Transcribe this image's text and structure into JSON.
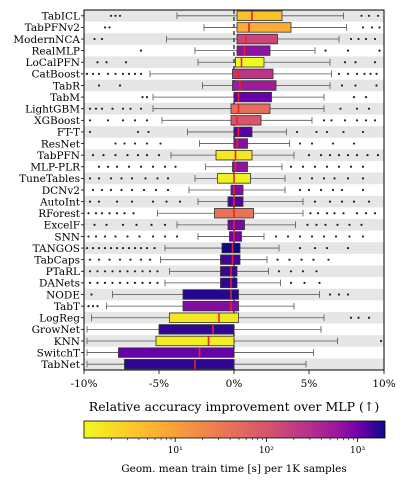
{
  "chart_data": {
    "type": "boxplot",
    "orientation": "horizontal",
    "xlabel": "Relative accuracy improvement over MLP (↑)",
    "xlim": [
      -10,
      10
    ],
    "xticks": [
      -10,
      -5,
      0,
      5,
      10
    ],
    "xtick_labels": [
      "-10%",
      "-5%",
      "0%",
      "5%",
      "10%"
    ],
    "zero_line": 0,
    "row_shading": "alternating light gray",
    "colorbar": {
      "label": "Geom. mean train time [s] per 1K samples",
      "scale": "log",
      "range": [
        1,
        2000
      ],
      "ticks": [
        10,
        100,
        1000
      ],
      "tick_labels": [
        "10¹",
        "10²",
        "10³"
      ],
      "colormap": "plasma_r"
    },
    "median_marker_color": "#e8231f",
    "series": [
      {
        "name": "TabICL",
        "q1": 0.2,
        "median": 1.2,
        "q3": 3.2,
        "whisker_low": -3.8,
        "whisker_high": 7.3,
        "time": 4,
        "outliers": [
          -8.2,
          -7.9,
          -7.6,
          8.5,
          9.0,
          9.6
        ]
      },
      {
        "name": "TabPFNv2",
        "q1": 0.2,
        "median": 1.0,
        "q3": 3.8,
        "whisker_low": -2.0,
        "whisker_high": 7.5,
        "time": 7,
        "outliers": [
          -8.6,
          -8.3,
          8.6,
          9.2,
          9.7
        ]
      },
      {
        "name": "ModernNCA",
        "q1": 0.2,
        "median": 0.8,
        "q3": 2.9,
        "whisker_low": -4.5,
        "whisker_high": 7.0,
        "time": 160,
        "outliers": [
          -9.3,
          -8.8,
          7.8,
          8.3,
          8.8,
          9.4
        ]
      },
      {
        "name": "RealMLP",
        "q1": 0.2,
        "median": 0.7,
        "q3": 2.4,
        "whisker_low": -2.6,
        "whisker_high": 5.4,
        "time": 700,
        "outliers": [
          -6.2,
          6.1,
          7.6,
          9.7
        ]
      },
      {
        "name": "LoCalPFN",
        "q1": 0.1,
        "median": 0.5,
        "q3": 2.0,
        "whisker_low": -2.4,
        "whisker_high": 6.4,
        "time": 1,
        "outliers": [
          -9.1,
          -8.5,
          -7.2,
          7.4,
          8.1,
          9.4
        ]
      },
      {
        "name": "CatBoost",
        "q1": -0.1,
        "median": 0.3,
        "q3": 2.6,
        "whisker_low": -5.6,
        "whisker_high": 6.5,
        "time": 260,
        "outliers": [
          -9.8,
          -9.4,
          -9.0,
          -8.4,
          -7.9,
          -7.4,
          -7.0,
          -6.6,
          -6.2,
          7.0,
          7.6,
          8.2,
          8.7,
          9.1,
          9.5
        ]
      },
      {
        "name": "TabR",
        "q1": -0.1,
        "median": 0.4,
        "q3": 2.8,
        "whisker_low": -2.1,
        "whisker_high": 6.4,
        "time": 550,
        "outliers": [
          -9.0,
          -7.6,
          7.2,
          8.1,
          9.5
        ]
      },
      {
        "name": "TabM",
        "q1": 0.0,
        "median": 0.3,
        "q3": 2.5,
        "whisker_low": -5.4,
        "whisker_high": 6.0,
        "time": 1100,
        "outliers": [
          -6.1,
          -5.8,
          8.0,
          8.8
        ]
      },
      {
        "name": "LightGBM",
        "q1": -0.2,
        "median": 0.3,
        "q3": 2.4,
        "whisker_low": -5.4,
        "whisker_high": 6.0,
        "time": 45,
        "outliers": [
          -9.6,
          -9.2,
          -8.8,
          -8.1,
          -7.4,
          -6.9,
          -6.2,
          7.1,
          8.2,
          9.0
        ]
      },
      {
        "name": "XGBoost",
        "q1": -0.2,
        "median": 0.2,
        "q3": 1.8,
        "whisker_low": -4.8,
        "whisker_high": 5.2,
        "time": 100,
        "outliers": [
          -9.6,
          -8.4,
          -7.4,
          -6.6,
          -5.8,
          6.0,
          6.5,
          7.4,
          8.2,
          8.8,
          9.4
        ]
      },
      {
        "name": "FT-T",
        "q1": 0.0,
        "median": 0.3,
        "q3": 1.2,
        "whisker_low": -3.1,
        "whisker_high": 3.5,
        "time": 1200,
        "outliers": [
          -9.6,
          -6.4,
          -5.7,
          4.2,
          5.5,
          6.2,
          7.3,
          8.6
        ]
      },
      {
        "name": "ResNet",
        "q1": 0.0,
        "median": 0.2,
        "q3": 0.9,
        "whisker_low": -2.3,
        "whisker_high": 3.7,
        "time": 750,
        "outliers": [
          -7.9,
          -7.3,
          -6.6,
          -5.8,
          -4.9,
          4.4,
          5.2,
          6.6,
          8.0
        ]
      },
      {
        "name": "TabPFN",
        "q1": -1.2,
        "median": 0.1,
        "q3": 1.2,
        "whisker_low": -4.2,
        "whisker_high": 4.0,
        "time": 1.5,
        "outliers": [
          -9.4,
          -8.7,
          -7.9,
          -7.1,
          -6.4,
          -5.8,
          -5.0,
          5.0,
          5.8,
          6.4,
          7.0,
          7.6,
          8.2,
          8.9,
          9.6
        ]
      },
      {
        "name": "MLP-PLR",
        "q1": -0.1,
        "median": 0.1,
        "q3": 0.9,
        "whisker_low": -1.9,
        "whisker_high": 3.2,
        "time": 700,
        "outliers": [
          -9.0,
          -8.4,
          -7.8,
          -7.0,
          -6.2,
          -5.4,
          -4.6,
          -3.9,
          3.8,
          4.6,
          5.4,
          6.2,
          7.0,
          7.8,
          8.6
        ]
      },
      {
        "name": "TuneTables",
        "q1": -1.1,
        "median": 0.0,
        "q3": 1.1,
        "whisker_low": -2.6,
        "whisker_high": 3.4,
        "time": 1.2,
        "outliers": [
          -9.6,
          -9.0,
          -8.2,
          -7.5,
          -6.8,
          -5.9,
          -5.1,
          -4.4,
          4.4,
          5.2,
          6.0,
          6.7,
          7.6,
          8.6
        ]
      },
      {
        "name": "DCNv2",
        "q1": -0.2,
        "median": 0.0,
        "q3": 0.6,
        "whisker_low": -3.0,
        "whisker_high": 3.4,
        "time": 800,
        "outliers": [
          -9.4,
          -8.8,
          -8.2,
          -7.5,
          -6.8,
          -6.0,
          -5.2,
          -4.4,
          4.4,
          5.0,
          5.8,
          6.6,
          7.2,
          8.6
        ]
      },
      {
        "name": "AutoInt",
        "q1": -0.4,
        "median": 0.0,
        "q3": 0.6,
        "whisker_low": -2.4,
        "whisker_high": 4.6,
        "time": 1300,
        "outliers": [
          -9.6,
          -9.0,
          -7.8,
          -6.8,
          -5.4,
          -4.5,
          -3.6,
          5.4,
          6.4,
          7.2,
          8.0,
          9.0
        ]
      },
      {
        "name": "RForest",
        "q1": -1.3,
        "median": 0.0,
        "q3": 1.3,
        "whisker_low": -5.1,
        "whisker_high": 4.6,
        "time": 38,
        "outliers": [
          -9.7,
          -9.2,
          -8.8,
          -8.3,
          -7.8,
          -7.3,
          -6.7,
          5.1,
          5.6,
          6.2,
          6.7,
          7.3,
          8.2,
          8.8,
          9.4
        ]
      },
      {
        "name": "ExcelF",
        "q1": -0.4,
        "median": 0.0,
        "q3": 0.7,
        "whisker_low": -3.8,
        "whisker_high": 4.1,
        "time": 900,
        "outliers": [
          -9.3,
          -8.5,
          -7.4,
          -6.5,
          -5.5,
          -4.6,
          4.9,
          5.5,
          6.1,
          6.9,
          7.7,
          8.5
        ]
      },
      {
        "name": "SNN",
        "q1": -0.3,
        "median": 0.0,
        "q3": 0.5,
        "whisker_low": -2.4,
        "whisker_high": 2.0,
        "time": 1000,
        "outliers": [
          -9.7,
          -9.2,
          -8.6,
          -7.9,
          -7.1,
          -6.3,
          -5.4,
          -4.6,
          -3.8,
          2.8,
          3.6,
          4.4,
          5.2,
          6.0,
          6.8,
          7.7,
          8.6
        ]
      },
      {
        "name": "TANGOS",
        "q1": -0.8,
        "median": -0.1,
        "q3": 0.4,
        "whisker_low": -4.6,
        "whisker_high": 3.0,
        "time": 2000,
        "outliers": [
          -9.8,
          -9.4,
          -9.0,
          -8.6,
          -8.2,
          -7.8,
          -7.4,
          -7.0,
          -6.6,
          -6.2,
          -5.8,
          -5.3,
          4.4,
          5.4,
          6.2,
          7.6
        ]
      },
      {
        "name": "TabCaps",
        "q1": -0.9,
        "median": -0.1,
        "q3": 0.4,
        "whisker_low": -4.9,
        "whisker_high": 2.2,
        "time": 1400,
        "outliers": [
          -9.6,
          -9.0,
          -8.3,
          -7.6,
          -6.9,
          -6.2,
          -5.6,
          2.9,
          3.7,
          4.5,
          5.3,
          6.3
        ]
      },
      {
        "name": "PTaRL",
        "q1": -0.9,
        "median": -0.2,
        "q3": 0.2,
        "whisker_low": -4.3,
        "whisker_high": 2.3,
        "time": 1500,
        "outliers": [
          -9.6,
          -9.1,
          -8.6,
          -8.1,
          -7.6,
          -7.1,
          -6.6,
          -6.1,
          -5.6,
          -5.1,
          3.0,
          3.8,
          4.6,
          5.5
        ]
      },
      {
        "name": "DANets",
        "q1": -0.9,
        "median": -0.2,
        "q3": 0.2,
        "whisker_low": -4.6,
        "whisker_high": 3.1,
        "time": 1600,
        "outliers": [
          -9.6,
          -9.1,
          -8.6,
          -8.1,
          -7.6,
          -7.1,
          -6.6,
          -6.1,
          -5.6,
          -5.1,
          3.8,
          4.7,
          5.7
        ]
      },
      {
        "name": "NODE",
        "q1": -3.4,
        "median": -0.2,
        "q3": 0.3,
        "whisker_low": -8.1,
        "whisker_high": 5.7,
        "time": 1700,
        "outliers": [
          -9.5,
          6.4,
          7.0,
          7.6
        ]
      },
      {
        "name": "TabT",
        "q1": -3.4,
        "median": -0.2,
        "q3": 0.3,
        "whisker_low": -8.5,
        "whisker_high": 4.0,
        "time": 800,
        "outliers": [
          -9.7,
          -9.4,
          -9.1
        ]
      },
      {
        "name": "LogReg",
        "q1": -4.3,
        "median": -1.0,
        "q3": 0.3,
        "whisker_low": -9.5,
        "whisker_high": 6.0,
        "time": 1.5,
        "outliers": [
          7.8,
          8.3,
          9.0
        ]
      },
      {
        "name": "GrowNet",
        "q1": -5.0,
        "median": -1.4,
        "q3": 0.0,
        "whisker_low": -9.8,
        "whisker_high": 5.8,
        "time": 1600,
        "outliers": []
      },
      {
        "name": "KNN",
        "q1": -5.2,
        "median": -1.7,
        "q3": 0.0,
        "whisker_low": -9.8,
        "whisker_high": 6.9,
        "time": 1.3,
        "outliers": [
          9.8
        ]
      },
      {
        "name": "SwitchT",
        "q1": -7.7,
        "median": -2.3,
        "q3": 0.0,
        "whisker_low": -9.8,
        "whisker_high": 5.3,
        "time": 1100,
        "outliers": []
      },
      {
        "name": "TabNet",
        "q1": -7.3,
        "median": -2.6,
        "q3": 0.0,
        "whisker_low": -9.8,
        "whisker_high": 4.8,
        "time": 1600,
        "outliers": []
      }
    ]
  }
}
